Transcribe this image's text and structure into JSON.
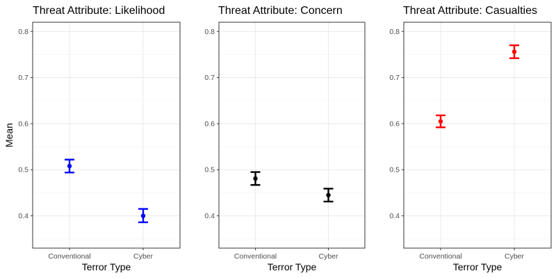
{
  "colors": {
    "panel_border": "#333333",
    "grid_major": "#ebebeb",
    "grid_minor": "#f5f5f5",
    "tick_text": "#4d4d4d",
    "text": "#000000"
  },
  "chart_data": [
    {
      "type": "errorbar",
      "title": "Threat Attribute: Likelihood",
      "xlabel": "Terror Type",
      "ylabel": "Mean",
      "categories": [
        "Conventional",
        "Cyber"
      ],
      "means": [
        0.508,
        0.4
      ],
      "lower": [
        0.494,
        0.386
      ],
      "upper": [
        0.522,
        0.415
      ],
      "color": "#0000ff",
      "ylim": [
        0.33,
        0.82
      ],
      "yticks": [
        0.4,
        0.5,
        0.6,
        0.7,
        0.8
      ],
      "ytick_labels": [
        "0.4",
        "0.5",
        "0.6",
        "0.7",
        "0.8"
      ],
      "grid": true
    },
    {
      "type": "errorbar",
      "title": "Threat Attribute: Concern",
      "xlabel": "Terror Type",
      "ylabel": "",
      "categories": [
        "Conventional",
        "Cyber"
      ],
      "means": [
        0.481,
        0.445
      ],
      "lower": [
        0.467,
        0.431
      ],
      "upper": [
        0.495,
        0.459
      ],
      "color": "#000000",
      "ylim": [
        0.33,
        0.82
      ],
      "yticks": [
        0.4,
        0.5,
        0.6,
        0.7,
        0.8
      ],
      "ytick_labels": [
        "0.4",
        "0.5",
        "0.6",
        "0.7",
        "0.8"
      ],
      "grid": true
    },
    {
      "type": "errorbar",
      "title": "Threat Attribute: Casualties",
      "xlabel": "Terror Type",
      "ylabel": "",
      "categories": [
        "Conventional",
        "Cyber"
      ],
      "means": [
        0.605,
        0.756
      ],
      "lower": [
        0.592,
        0.742
      ],
      "upper": [
        0.618,
        0.77
      ],
      "color": "#ff0000",
      "ylim": [
        0.33,
        0.82
      ],
      "yticks": [
        0.4,
        0.5,
        0.6,
        0.7,
        0.8
      ],
      "ytick_labels": [
        "0.4",
        "0.5",
        "0.6",
        "0.7",
        "0.8"
      ],
      "grid": true
    }
  ]
}
